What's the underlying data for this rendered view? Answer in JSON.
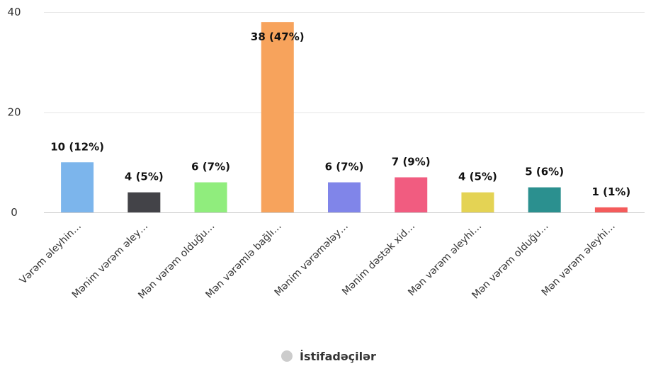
{
  "chart_data": {
    "type": "bar",
    "categories": [
      "Vərəm əleyhin…",
      "Mənim vərəm əley…",
      "Mən vərəm olduğu…",
      "Mən vərəmlə bağlı…",
      "Mənim vərəmələy…",
      "Mənim dəstək xid…",
      "Mən vərəm əleyhi…",
      "Mən vərəm olduğu…",
      "Mən vərəm əleyhi…"
    ],
    "series": [
      {
        "name": "İstifadəçilər",
        "values": [
          10,
          4,
          6,
          38,
          6,
          7,
          4,
          5,
          1
        ],
        "data_labels": [
          "10 (12%)",
          "4 (5%)",
          "6 (7%)",
          "38 (47%)",
          "6 (7%)",
          "7 (9%)",
          "4 (5%)",
          "5 (6%)",
          "1 (1%)"
        ]
      }
    ],
    "colors": [
      "#7cb5ec",
      "#434348",
      "#90ed7d",
      "#f7a35c",
      "#8085e9",
      "#f15c80",
      "#e4d354",
      "#2b908f",
      "#f45b5b"
    ],
    "legend_color": "#cccccc",
    "yticks": [
      "0",
      "20",
      "40"
    ],
    "ylim": [
      0,
      40
    ],
    "grid": true,
    "legend_position": "bottom-center"
  }
}
